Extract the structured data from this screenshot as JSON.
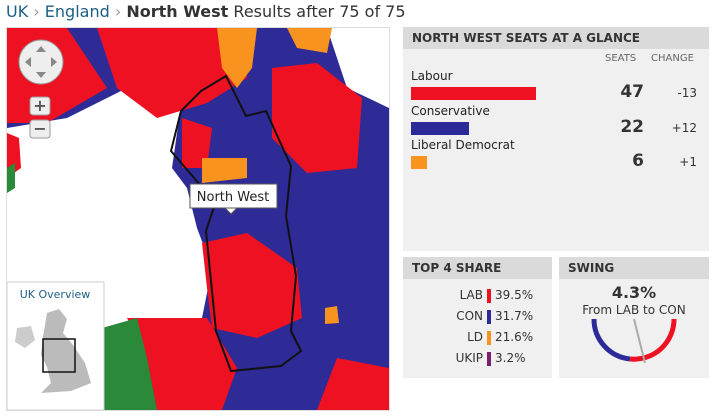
{
  "breadcrumb": {
    "links": [
      "UK",
      "England"
    ],
    "current": "North West",
    "status": "Results after 75 of 75"
  },
  "map": {
    "region_label": "North West",
    "overview_label": "UK Overview"
  },
  "seats_panel": {
    "title": "NORTH WEST SEATS AT A GLANCE",
    "columns": [
      "SEATS",
      "CHANGE"
    ],
    "parties": [
      {
        "name": "Labour",
        "seats": 47,
        "change": "-13",
        "color": "#ee1122"
      },
      {
        "name": "Conservative",
        "seats": 22,
        "change": "+12",
        "color": "#2c2a99"
      },
      {
        "name": "Liberal Democrat",
        "seats": 6,
        "change": "+1",
        "color": "#f7931e"
      }
    ]
  },
  "share_panel": {
    "title": "TOP 4 SHARE",
    "rows": [
      {
        "party": "LAB",
        "share": "39.5%",
        "color": "#ee1122"
      },
      {
        "party": "CON",
        "share": "31.7%",
        "color": "#2c2a99"
      },
      {
        "party": "LD",
        "share": "21.6%",
        "color": "#f7931e"
      },
      {
        "party": "UKIP",
        "share": "3.2%",
        "color": "#7a1f6e"
      }
    ]
  },
  "swing_panel": {
    "title": "SWING",
    "value": "4.3%",
    "caption": "From LAB to CON"
  }
}
